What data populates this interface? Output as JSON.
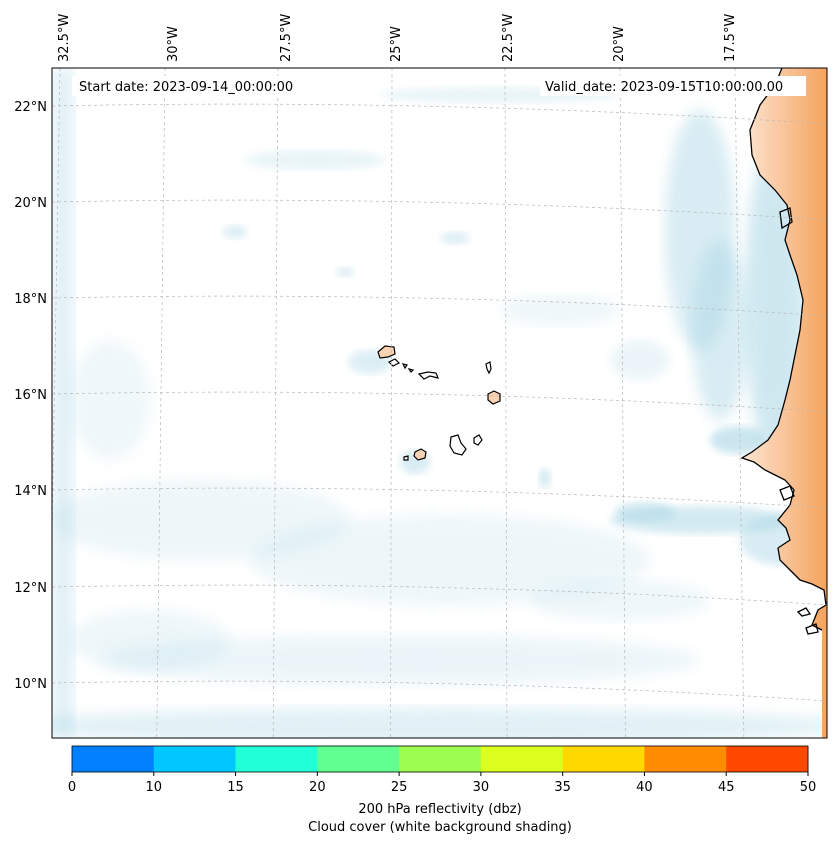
{
  "map": {
    "start_label": "Start date: 2023-09-14_00:00:00",
    "valid_label": "Valid_date: 2023-09-15T10:00:00.00",
    "lon_labels": [
      "32.5°W",
      "30°W",
      "27.5°W",
      "25°W",
      "22.5°W",
      "20°W",
      "17.5°W"
    ],
    "lat_labels": [
      "22°N",
      "20°N",
      "18°N",
      "16°N",
      "14°N",
      "12°N",
      "10°N"
    ],
    "land_color": "#f5a35c",
    "cloud_color": "#a9d6e5",
    "grid": true
  },
  "colorbar": {
    "title": "200 hPa reflectivity (dbz)",
    "subtitle": "Cloud cover (white background shading)",
    "ticks": [
      "0",
      "10",
      "15",
      "20",
      "25",
      "30",
      "35",
      "40",
      "45",
      "50"
    ],
    "colors": [
      "#0080ff",
      "#00c8ff",
      "#20ffd8",
      "#60ff90",
      "#9cff50",
      "#dcff20",
      "#ffd800",
      "#ff8c00",
      "#ff4800"
    ]
  }
}
